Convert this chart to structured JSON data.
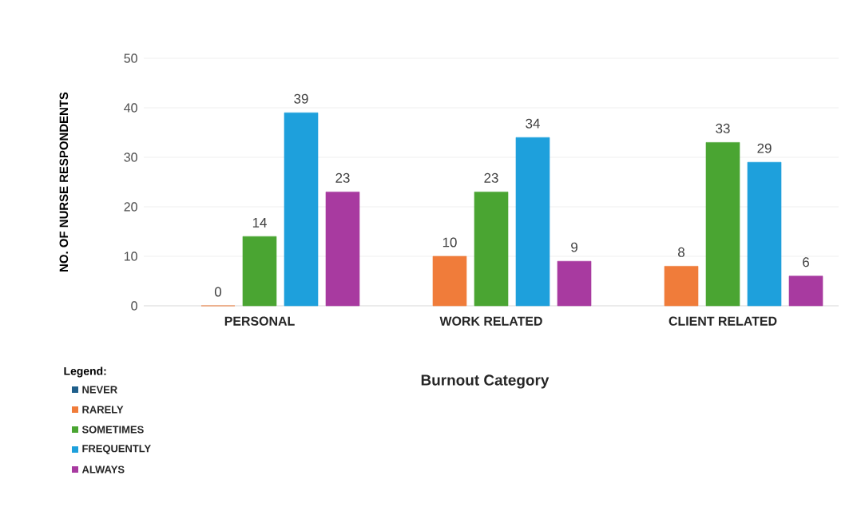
{
  "chart_data": {
    "type": "bar",
    "xlabel": "Burnout Category",
    "ylabel": "NO. OF NURSE RESPONDENTS",
    "legend_title": "Legend:",
    "categories": [
      "PERSONAL",
      "WORK RELATED",
      "CLIENT RELATED"
    ],
    "series": [
      {
        "name": "NEVER",
        "color": "#1f5f8b",
        "values": [
          null,
          null,
          null
        ]
      },
      {
        "name": "RARELY",
        "color": "#f07c3a",
        "values": [
          0,
          10,
          8
        ]
      },
      {
        "name": "SOMETIMES",
        "color": "#4aa532",
        "values": [
          14,
          23,
          33
        ]
      },
      {
        "name": "FREQUENTLY",
        "color": "#1ea0dc",
        "values": [
          39,
          34,
          29
        ]
      },
      {
        "name": "ALWAYS",
        "color": "#a83aa0",
        "values": [
          23,
          9,
          6
        ]
      }
    ],
    "ylim": [
      0,
      50
    ],
    "yticks": [
      0,
      10,
      20,
      30,
      40,
      50
    ],
    "grid": "y",
    "legend": "bottom left",
    "data_labels": true
  }
}
